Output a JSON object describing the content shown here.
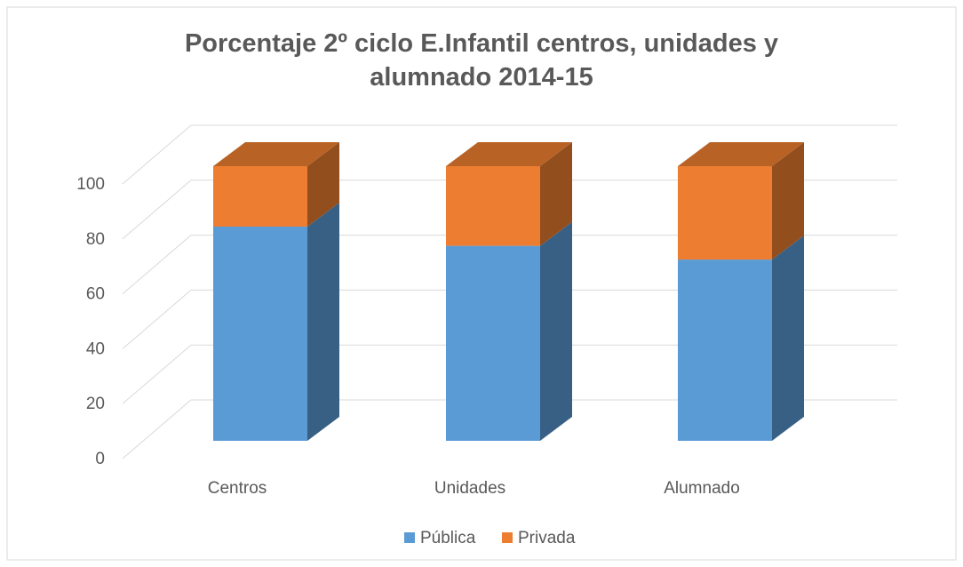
{
  "chart_data": {
    "type": "bar3d",
    "stacked": true,
    "title": "Porcentaje 2º ciclo E.Infantil centros, unidades y alumnado 2014-15",
    "categories": [
      "Centros",
      "Unidades",
      "Alumnado"
    ],
    "series": [
      {
        "name": "Pública",
        "color": "#5b9bd5",
        "values": [
          78,
          71,
          66
        ]
      },
      {
        "name": "Privada",
        "color": "#ed7d31",
        "values": [
          22,
          29,
          34
        ]
      }
    ],
    "ylim": [
      0,
      100
    ],
    "yticks": [
      0,
      20,
      40,
      60,
      80,
      100
    ],
    "grid": true,
    "legend": "bottom"
  }
}
